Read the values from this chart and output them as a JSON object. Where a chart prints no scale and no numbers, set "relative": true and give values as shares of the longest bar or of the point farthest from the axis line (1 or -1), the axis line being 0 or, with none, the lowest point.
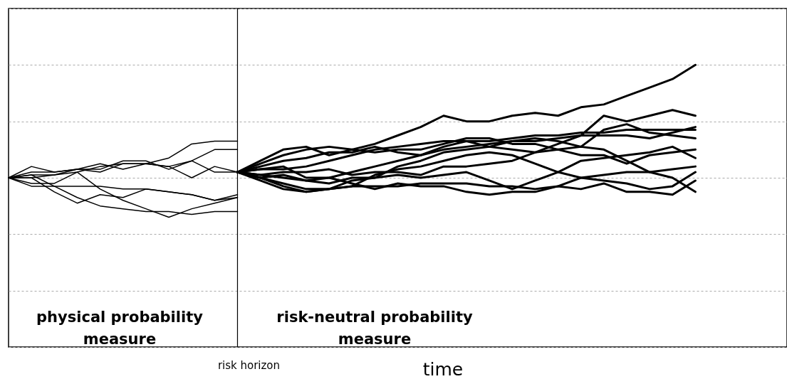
{
  "chart_data": {
    "type": "line",
    "relative": true,
    "xlabel": "time",
    "grid": "y",
    "legend": false,
    "categories": [
      null,
      null,
      null,
      null,
      null,
      null,
      null,
      null,
      null,
      null,
      null,
      null,
      null,
      null,
      null,
      null,
      null,
      null,
      null,
      null,
      null,
      null,
      null,
      null,
      null,
      null,
      null,
      null,
      null,
      null,
      null,
      null,
      null,
      null,
      null
    ],
    "annotations": [
      "physical probability measure",
      "risk-neutral probability measure",
      "risk horizon"
    ],
    "series": [
      {
        "color": "#000000",
        "values": [
          0.6,
          0.62,
          0.62,
          0.63,
          0.62,
          0.65,
          0.65,
          0.67,
          0.72,
          0.73,
          0.73,
          null,
          null,
          null,
          null,
          null,
          null,
          null,
          null,
          null,
          null,
          null,
          null,
          null,
          null,
          null,
          null,
          null,
          null,
          null,
          null,
          null,
          null,
          null,
          null
        ]
      },
      {
        "color": "#000000",
        "values": [
          0.6,
          0.61,
          0.61,
          0.62,
          0.64,
          0.65,
          0.65,
          0.64,
          0.66,
          0.7,
          0.7,
          null,
          null,
          null,
          null,
          null,
          null,
          null,
          null,
          null,
          null,
          null,
          null,
          null,
          null,
          null,
          null,
          null,
          null,
          null,
          null,
          null,
          null,
          null,
          null
        ]
      },
      {
        "color": "#000000",
        "values": [
          0.6,
          0.64,
          0.62,
          0.63,
          0.65,
          0.63,
          0.65,
          0.64,
          0.6,
          0.64,
          0.62,
          null,
          null,
          null,
          null,
          null,
          null,
          null,
          null,
          null,
          null,
          null,
          null,
          null,
          null,
          null,
          null,
          null,
          null,
          null,
          null,
          null,
          null,
          null,
          null
        ]
      },
      {
        "color": "#000000",
        "values": [
          0.6,
          0.6,
          0.61,
          0.63,
          0.63,
          0.66,
          0.66,
          0.63,
          0.66,
          0.62,
          0.62,
          null,
          null,
          null,
          null,
          null,
          null,
          null,
          null,
          null,
          null,
          null,
          null,
          null,
          null,
          null,
          null,
          null,
          null,
          null,
          null,
          null,
          null,
          null,
          null
        ]
      },
      {
        "color": "#000000",
        "values": [
          0.6,
          0.57,
          0.57,
          0.57,
          0.57,
          0.56,
          0.56,
          0.55,
          0.54,
          0.52,
          0.54,
          null,
          null,
          null,
          null,
          null,
          null,
          null,
          null,
          null,
          null,
          null,
          null,
          null,
          null,
          null,
          null,
          null,
          null,
          null,
          null,
          null,
          null,
          null,
          null
        ]
      },
      {
        "color": "#000000",
        "values": [
          0.6,
          0.6,
          0.55,
          0.51,
          0.54,
          0.53,
          0.56,
          0.55,
          0.54,
          0.52,
          0.53,
          null,
          null,
          null,
          null,
          null,
          null,
          null,
          null,
          null,
          null,
          null,
          null,
          null,
          null,
          null,
          null,
          null,
          null,
          null,
          null,
          null,
          null,
          null,
          null
        ]
      },
      {
        "color": "#000000",
        "values": [
          0.6,
          0.61,
          0.57,
          0.53,
          0.5,
          0.49,
          0.48,
          0.48,
          0.47,
          0.48,
          0.48,
          null,
          null,
          null,
          null,
          null,
          null,
          null,
          null,
          null,
          null,
          null,
          null,
          null,
          null,
          null,
          null,
          null,
          null,
          null,
          null,
          null,
          null,
          null,
          null
        ]
      },
      {
        "color": "#000000",
        "values": [
          0.6,
          0.58,
          0.58,
          0.62,
          0.56,
          0.52,
          0.49,
          0.46,
          0.49,
          0.51,
          0.53,
          null,
          null,
          null,
          null,
          null,
          null,
          null,
          null,
          null,
          null,
          null,
          null,
          null,
          null,
          null,
          null,
          null,
          null,
          null,
          null,
          null,
          null,
          null,
          null
        ]
      },
      {
        "color": "#000000",
        "values": [
          null,
          null,
          null,
          null,
          null,
          null,
          null,
          null,
          null,
          null,
          0.62,
          0.65,
          0.68,
          0.7,
          0.71,
          0.7,
          0.72,
          0.75,
          0.78,
          0.82,
          0.8,
          0.8,
          0.82,
          0.83,
          0.82,
          0.85,
          0.86,
          0.89,
          0.92,
          0.95,
          1.0,
          null,
          null,
          null,
          null
        ]
      },
      {
        "color": "#000000",
        "values": [
          null,
          null,
          null,
          null,
          null,
          null,
          null,
          null,
          null,
          null,
          0.62,
          0.64,
          0.66,
          0.67,
          0.69,
          0.69,
          0.71,
          0.69,
          0.68,
          0.71,
          0.73,
          0.71,
          0.7,
          0.69,
          0.72,
          0.75,
          0.82,
          0.8,
          0.82,
          0.84,
          0.82,
          null,
          null,
          null,
          null
        ]
      },
      {
        "color": "#000000",
        "values": [
          null,
          null,
          null,
          null,
          null,
          null,
          null,
          null,
          null,
          null,
          0.62,
          0.61,
          0.6,
          0.59,
          0.6,
          0.62,
          0.64,
          0.66,
          0.68,
          0.7,
          0.71,
          0.72,
          0.73,
          0.73,
          0.74,
          0.75,
          0.75,
          0.75,
          0.74,
          0.76,
          0.78,
          null,
          null,
          null,
          null
        ]
      },
      {
        "color": "#000000",
        "values": [
          null,
          null,
          null,
          null,
          null,
          null,
          null,
          null,
          null,
          null,
          0.62,
          0.63,
          0.63,
          0.64,
          0.66,
          0.68,
          0.7,
          0.71,
          0.72,
          0.73,
          0.73,
          0.73,
          0.74,
          0.75,
          0.75,
          0.76,
          0.76,
          0.77,
          0.77,
          0.77,
          0.77,
          null,
          null,
          null,
          null
        ]
      },
      {
        "color": "#000000",
        "values": [
          null,
          null,
          null,
          null,
          null,
          null,
          null,
          null,
          null,
          null,
          0.62,
          0.6,
          0.58,
          0.56,
          0.56,
          0.59,
          0.6,
          0.64,
          0.66,
          0.69,
          0.7,
          0.71,
          0.73,
          0.74,
          0.73,
          0.71,
          0.77,
          0.79,
          0.76,
          0.75,
          0.74,
          null,
          null,
          null,
          null
        ]
      },
      {
        "color": "#000000",
        "values": [
          null,
          null,
          null,
          null,
          null,
          null,
          null,
          null,
          null,
          null,
          0.62,
          0.66,
          0.7,
          0.71,
          0.68,
          0.7,
          0.69,
          0.7,
          0.7,
          0.72,
          0.74,
          0.74,
          0.72,
          0.72,
          0.7,
          0.71,
          0.7,
          0.66,
          0.62,
          0.6,
          0.55,
          null,
          null,
          null,
          null
        ]
      },
      {
        "color": "#000000",
        "values": [
          null,
          null,
          null,
          null,
          null,
          null,
          null,
          null,
          null,
          null,
          0.62,
          0.61,
          0.62,
          0.62,
          0.63,
          0.61,
          0.62,
          0.62,
          0.61,
          0.64,
          0.64,
          0.65,
          0.66,
          0.69,
          0.7,
          0.68,
          0.68,
          0.65,
          0.68,
          0.69,
          0.7,
          null,
          null,
          null,
          null
        ]
      },
      {
        "color": "#000000",
        "values": [
          null,
          null,
          null,
          null,
          null,
          null,
          null,
          null,
          null,
          null,
          0.62,
          0.6,
          0.61,
          0.59,
          0.58,
          0.6,
          0.6,
          0.61,
          0.6,
          0.61,
          0.62,
          0.59,
          0.56,
          0.59,
          0.62,
          0.66,
          0.67,
          0.68,
          0.69,
          0.71,
          0.67,
          null,
          null,
          null,
          null
        ]
      },
      {
        "color": "#000000",
        "values": [
          null,
          null,
          null,
          null,
          null,
          null,
          null,
          null,
          null,
          null,
          0.62,
          0.63,
          0.64,
          0.6,
          0.6,
          0.58,
          0.56,
          0.58,
          0.57,
          0.57,
          0.55,
          0.54,
          0.55,
          0.55,
          0.57,
          0.6,
          0.61,
          0.62,
          0.62,
          0.63,
          0.64,
          null,
          null,
          null,
          null
        ]
      },
      {
        "color": "#000000",
        "values": [
          null,
          null,
          null,
          null,
          null,
          null,
          null,
          null,
          null,
          null,
          0.62,
          0.59,
          0.56,
          0.55,
          0.56,
          0.57,
          0.57,
          0.57,
          0.58,
          0.58,
          0.58,
          0.57,
          0.57,
          0.56,
          0.57,
          0.56,
          0.58,
          0.55,
          0.55,
          0.54,
          0.59,
          null,
          null,
          null,
          null
        ]
      },
      {
        "color": "#000000",
        "values": [
          null,
          null,
          null,
          null,
          null,
          null,
          null,
          null,
          null,
          null,
          0.62,
          0.6,
          0.57,
          0.55,
          0.56,
          0.57,
          0.61,
          0.63,
          0.64,
          0.66,
          0.68,
          0.69,
          0.68,
          0.65,
          0.62,
          0.6,
          0.59,
          0.58,
          0.56,
          0.57,
          0.62,
          null,
          null,
          null,
          null
        ]
      }
    ]
  }
}
